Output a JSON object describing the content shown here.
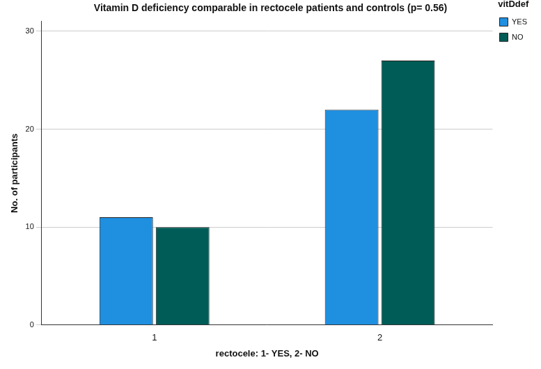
{
  "chart_data": {
    "type": "bar",
    "title": "Vitamin D deficiency comparable in rectocele patients and controls (p= 0.56)",
    "x_label": "rectocele: 1- YES, 2- NO",
    "y_label": "No. of participants",
    "legend_title": "vitDdef",
    "categories": [
      "1",
      "2"
    ],
    "series": [
      {
        "name": "YES",
        "color": "#1f8fe0",
        "values": [
          11,
          22
        ]
      },
      {
        "name": "NO",
        "color": "#005c57",
        "values": [
          10,
          27
        ]
      }
    ],
    "ylim": [
      0,
      31
    ],
    "yticks": [
      0,
      10,
      20,
      30
    ],
    "grid": true,
    "legend": "top-right"
  }
}
